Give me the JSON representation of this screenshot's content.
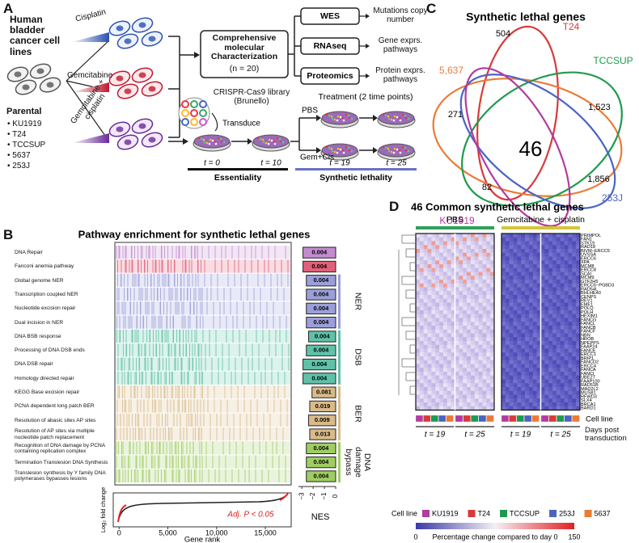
{
  "panel_a": {
    "label": "A",
    "cell_lines_title": "Human bladder cancer cell lines",
    "treatments": [
      "Cisplatin",
      "Gemcitabine",
      "Gemcitabine + cisplatin"
    ],
    "parental_title": "Parental",
    "parental_lines": [
      "KU1919",
      "T24",
      "TCCSUP",
      "5637",
      "253J"
    ],
    "characterization": "Comprehensive molecular Characterization",
    "n_label": "(n = 20)",
    "assays": [
      {
        "name": "WES",
        "result": "Mutations copy number"
      },
      {
        "name": "RNAseq",
        "result": "Gene exprs. pathways"
      },
      {
        "name": "Proteomics",
        "result": "Protein exprs. pathways"
      }
    ],
    "crispr": "CRISPR-Cas9 library (Brunello)",
    "transduce": "Transduce",
    "treatment_label": "Treatment (2 time points)",
    "pbs": "PBS",
    "gem_cis": "Gem+Cis",
    "timepoints": [
      "t = 0",
      "t = 10",
      "t = 19",
      "t = 25"
    ],
    "essentiality": "Essentiality",
    "synthetic_lethality": "Synthetic lethality"
  },
  "panel_b": {
    "label": "B",
    "title": "Pathway enrichment for synthetic lethal genes",
    "pathways": [
      {
        "name": "DNA Repair",
        "p": "0.004",
        "nes": -2.9,
        "color": "#c58bcf"
      },
      {
        "name": "Fanconi anemia pathway",
        "p": "0.004",
        "nes": -2.9,
        "color": "#e0607a"
      }
    ],
    "groups": [
      {
        "name": "NER",
        "color": "#9b9fd9",
        "pathways": [
          {
            "name": "Global genome NER",
            "p": "0.004",
            "nes": -2.6
          },
          {
            "name": "Transcription coupled NER",
            "p": "0.004",
            "nes": -2.6
          },
          {
            "name": "Nucleotide excision repair",
            "p": "0.004",
            "nes": -2.6
          },
          {
            "name": "Dual incision in NER",
            "p": "0.004",
            "nes": -2.6
          }
        ]
      },
      {
        "name": "DSB",
        "color": "#5fc2a8",
        "pathways": [
          {
            "name": "DNA BSB response",
            "p": "0.004",
            "nes": -2.4
          },
          {
            "name": "Processing of DNA DSB ends",
            "p": "0.004",
            "nes": -2.6
          },
          {
            "name": "DNA DSB repair",
            "p": "0.004",
            "nes": -2.9
          },
          {
            "name": "Homology directed repair",
            "p": "0.004",
            "nes": -2.9
          }
        ]
      },
      {
        "name": "BER",
        "color": "#d9bb8a",
        "pathways": [
          {
            "name": "KEGG Base excision repair",
            "p": "0.081",
            "nes": -2.1
          },
          {
            "name": "PCNA dependent long patch BER",
            "p": "0.019",
            "nes": -2.3
          },
          {
            "name": "Resolution of abasic sites AP sites",
            "p": "0.009",
            "nes": -2.4
          },
          {
            "name": "Resolution of AP sites via multiple nucleotide patch replacement",
            "p": "0.013",
            "nes": -2.3
          }
        ]
      },
      {
        "name": "DNA damage bypass",
        "color": "#9fcd62",
        "pathways": [
          {
            "name": "Recognition of DNA damage by PCNA containing replication complex",
            "p": "0.004",
            "nes": -2.6
          },
          {
            "name": "Termination Translesion DNA Synthesis",
            "p": "0.004",
            "nes": -2.6
          },
          {
            "name": "Translesion synthesis by Y family DNA polymerases bypasses lesions",
            "p": "0.004",
            "nes": -2.6
          }
        ]
      }
    ],
    "nes_axis": {
      "label": "NES",
      "lim": [
        -3.3,
        0
      ],
      "ticks": [
        {
          "value": -3,
          "label": "−3"
        },
        {
          "value": -2,
          "label": "−2"
        },
        {
          "value": -1,
          "label": "−1"
        },
        0
      ]
    },
    "rank_axis": {
      "label": "Gene rank",
      "lim": [
        -600,
        17650
      ],
      "ticks": [
        0,
        {
          "value": 5000,
          "label": "5,000"
        },
        {
          "value": 10000,
          "label": "10,000"
        },
        {
          "value": 15000,
          "label": "15,000"
        }
      ]
    },
    "fold_change_label": "Log₂ fold change",
    "annotation": "Adj. P < 0.05"
  },
  "panel_c": {
    "label": "C",
    "title": "Synthetic lethal genes",
    "sets": [
      {
        "name": "T24",
        "color": "#d83a3a"
      },
      {
        "name": "5,637",
        "color": "#ea7a36"
      },
      {
        "name": "TCCSUP",
        "color": "#1e9a4e"
      },
      {
        "name": "253J",
        "color": "#4a64c4"
      },
      {
        "name": "KU1919",
        "color": "#b23aa0"
      }
    ],
    "counts": [
      "504",
      "271",
      "1,523",
      "46",
      "82",
      "1,856"
    ]
  },
  "panel_d": {
    "label": "D",
    "title": "46 Common synthetic lethal genes",
    "conditions": [
      {
        "name": "PBS",
        "color": "#2ea05a"
      },
      {
        "name": "Gemcitabine + cisplatin",
        "color": "#d6c43a"
      }
    ],
    "genes": [
      "PRIMPOL",
      "FAN1",
      "STK19",
      "RAD18",
      "BIVM−ERCC5",
      "UVSSA",
      "ERCC6",
      "XPA",
      "MCM8",
      "ERCC8",
      "SCAI",
      "MCM9",
      "GTF2H5",
      "ERCC6−PGBD3",
      "RAD54L",
      "BHLHE40",
      "CENPS",
      "REV1",
      "EME1",
      "POLQ",
      "POLH",
      "HEXIM1",
      "FANCG",
      "FANCL",
      "FANCB",
      "FANCF",
      "NBN",
      "HROB",
      "NPEPPS",
      "FAAP24",
      "FANCE",
      "ERCC1",
      "BRIP1",
      "FANCD2",
      "ERCC4",
      "FANCA",
      "FANCI",
      "UBE2T",
      "FAAP100",
      "RAD51B",
      "MAD2L2",
      "MUS81",
      "RFWD3",
      "SLX4",
      "BRCA1",
      "BARD1"
    ],
    "timepoints": [
      "t = 19",
      "t = 25",
      "t = 19",
      "t = 25"
    ],
    "row_labels": [
      "Cell line",
      "Days post transduction"
    ],
    "legend_title": "Cell line",
    "cell_lines": [
      {
        "name": "KU1919",
        "color": "#b23aa0"
      },
      {
        "name": "T24",
        "color": "#d83a3a"
      },
      {
        "name": "TCCSUP",
        "color": "#1e9a4e"
      },
      {
        "name": "253J",
        "color": "#4a64c4"
      },
      {
        "name": "5637",
        "color": "#ea7a36"
      }
    ],
    "colorbar": {
      "min": "0",
      "max": "150",
      "label": "Percentage change compared to day 0"
    }
  }
}
